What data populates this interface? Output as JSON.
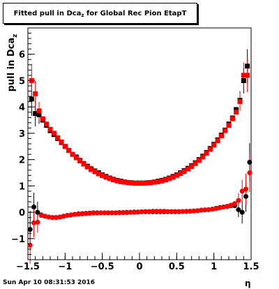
{
  "chart_data": {
    "type": "scatter",
    "title": {
      "text": "Fitted pull in Dca",
      "sub": "z",
      "suffix": " for Global Rec Pion EtapT"
    },
    "xlabel": "η",
    "ylabel": {
      "text": "pull in Dca",
      "sub": "z"
    },
    "xlim": [
      -1.5,
      1.5
    ],
    "ylim": [
      -1.8,
      7.0
    ],
    "grid": false,
    "xticks": [
      {
        "v": -1.5,
        "label": "−1.5"
      },
      {
        "v": -1,
        "label": "−1"
      },
      {
        "v": -0.5,
        "label": "−0.5"
      },
      {
        "v": 0,
        "label": "0"
      },
      {
        "v": 0.5,
        "label": "0.5"
      },
      {
        "v": 1,
        "label": "1"
      },
      {
        "v": 1.5,
        "label": "1.5"
      }
    ],
    "yticks": [
      {
        "v": -1,
        "label": "−1"
      },
      {
        "v": 0,
        "label": "0"
      },
      {
        "v": 1,
        "label": "1"
      },
      {
        "v": 2,
        "label": "2"
      },
      {
        "v": 3,
        "label": "3"
      },
      {
        "v": 4,
        "label": "4"
      },
      {
        "v": 5,
        "label": "5"
      },
      {
        "v": 6,
        "label": "6"
      }
    ],
    "series": [
      {
        "color": "#000000",
        "kind": "sigma",
        "marker": "square",
        "points": [
          [
            -1.45,
            4.3
          ],
          [
            -1.4,
            3.75
          ],
          [
            -1.35,
            3.7
          ],
          [
            -1.3,
            3.5
          ],
          [
            -1.25,
            3.3
          ],
          [
            -1.2,
            3.1
          ],
          [
            -1.15,
            2.95
          ],
          [
            -1.1,
            2.8
          ],
          [
            -1.05,
            2.65
          ],
          [
            -1.0,
            2.5
          ],
          [
            -0.95,
            2.35
          ],
          [
            -0.9,
            2.2
          ],
          [
            -0.85,
            2.1
          ],
          [
            -0.8,
            1.97
          ],
          [
            -0.75,
            1.85
          ],
          [
            -0.7,
            1.75
          ],
          [
            -0.65,
            1.65
          ],
          [
            -0.6,
            1.57
          ],
          [
            -0.55,
            1.5
          ],
          [
            -0.5,
            1.42
          ],
          [
            -0.45,
            1.36
          ],
          [
            -0.4,
            1.3
          ],
          [
            -0.35,
            1.25
          ],
          [
            -0.3,
            1.21
          ],
          [
            -0.25,
            1.18
          ],
          [
            -0.2,
            1.15
          ],
          [
            -0.15,
            1.13
          ],
          [
            -0.1,
            1.12
          ],
          [
            -0.05,
            1.11
          ],
          [
            0.0,
            1.11
          ],
          [
            0.05,
            1.11
          ],
          [
            0.1,
            1.12
          ],
          [
            0.15,
            1.13
          ],
          [
            0.2,
            1.15
          ],
          [
            0.25,
            1.18
          ],
          [
            0.3,
            1.21
          ],
          [
            0.35,
            1.25
          ],
          [
            0.4,
            1.3
          ],
          [
            0.45,
            1.36
          ],
          [
            0.5,
            1.42
          ],
          [
            0.55,
            1.5
          ],
          [
            0.6,
            1.58
          ],
          [
            0.65,
            1.67
          ],
          [
            0.7,
            1.77
          ],
          [
            0.75,
            1.88
          ],
          [
            0.8,
            2.0
          ],
          [
            0.85,
            2.13
          ],
          [
            0.9,
            2.27
          ],
          [
            0.95,
            2.42
          ],
          [
            1.0,
            2.58
          ],
          [
            1.05,
            2.75
          ],
          [
            1.1,
            2.93
          ],
          [
            1.15,
            3.12
          ],
          [
            1.2,
            3.35
          ],
          [
            1.25,
            3.58
          ],
          [
            1.3,
            3.9
          ],
          [
            1.35,
            4.25
          ],
          [
            1.4,
            5.0
          ],
          [
            1.45,
            5.55
          ]
        ]
      },
      {
        "color": "#ff0000",
        "kind": "sigma",
        "marker": "square",
        "points": [
          [
            -1.45,
            5.0
          ],
          [
            -1.4,
            4.5
          ],
          [
            -1.35,
            3.85
          ],
          [
            -1.3,
            3.55
          ],
          [
            -1.25,
            3.35
          ],
          [
            -1.2,
            3.15
          ],
          [
            -1.15,
            3.0
          ],
          [
            -1.1,
            2.83
          ],
          [
            -1.05,
            2.67
          ],
          [
            -1.0,
            2.5
          ],
          [
            -0.95,
            2.35
          ],
          [
            -0.9,
            2.2
          ],
          [
            -0.85,
            2.07
          ],
          [
            -0.8,
            1.95
          ],
          [
            -0.75,
            1.83
          ],
          [
            -0.7,
            1.72
          ],
          [
            -0.65,
            1.62
          ],
          [
            -0.6,
            1.54
          ],
          [
            -0.55,
            1.46
          ],
          [
            -0.5,
            1.39
          ],
          [
            -0.45,
            1.33
          ],
          [
            -0.4,
            1.28
          ],
          [
            -0.35,
            1.23
          ],
          [
            -0.3,
            1.19
          ],
          [
            -0.25,
            1.16
          ],
          [
            -0.2,
            1.14
          ],
          [
            -0.15,
            1.12
          ],
          [
            -0.1,
            1.11
          ],
          [
            -0.05,
            1.1
          ],
          [
            0.0,
            1.1
          ],
          [
            0.05,
            1.1
          ],
          [
            0.1,
            1.11
          ],
          [
            0.15,
            1.12
          ],
          [
            0.2,
            1.14
          ],
          [
            0.25,
            1.16
          ],
          [
            0.3,
            1.19
          ],
          [
            0.35,
            1.23
          ],
          [
            0.4,
            1.28
          ],
          [
            0.45,
            1.33
          ],
          [
            0.5,
            1.4
          ],
          [
            0.55,
            1.47
          ],
          [
            0.6,
            1.55
          ],
          [
            0.65,
            1.64
          ],
          [
            0.7,
            1.74
          ],
          [
            0.75,
            1.85
          ],
          [
            0.8,
            1.97
          ],
          [
            0.85,
            2.1
          ],
          [
            0.9,
            2.24
          ],
          [
            0.95,
            2.39
          ],
          [
            1.0,
            2.55
          ],
          [
            1.05,
            2.72
          ],
          [
            1.1,
            2.9
          ],
          [
            1.15,
            3.1
          ],
          [
            1.2,
            3.3
          ],
          [
            1.25,
            3.55
          ],
          [
            1.3,
            3.8
          ],
          [
            1.35,
            4.2
          ],
          [
            1.4,
            5.2
          ],
          [
            1.45,
            5.2
          ]
        ]
      },
      {
        "color": "#000000",
        "kind": "mean",
        "marker": "circle",
        "points": [
          [
            -1.47,
            -0.65
          ],
          [
            -1.42,
            0.2
          ],
          [
            -1.37,
            0.0
          ],
          [
            -1.32,
            -0.1
          ],
          [
            -1.27,
            -0.15
          ],
          [
            -1.22,
            -0.18
          ],
          [
            -1.17,
            -0.2
          ],
          [
            -1.12,
            -0.2
          ],
          [
            -1.07,
            -0.18
          ],
          [
            -1.02,
            -0.15
          ],
          [
            -0.97,
            -0.12
          ],
          [
            -0.92,
            -0.1
          ],
          [
            -0.87,
            -0.08
          ],
          [
            -0.82,
            -0.06
          ],
          [
            -0.77,
            -0.05
          ],
          [
            -0.72,
            -0.04
          ],
          [
            -0.67,
            -0.03
          ],
          [
            -0.62,
            -0.02
          ],
          [
            -0.57,
            -0.02
          ],
          [
            -0.52,
            -0.02
          ],
          [
            -0.47,
            -0.02
          ],
          [
            -0.42,
            -0.02
          ],
          [
            -0.37,
            -0.02
          ],
          [
            -0.32,
            -0.02
          ],
          [
            -0.27,
            -0.01
          ],
          [
            -0.22,
            -0.01
          ],
          [
            -0.17,
            0.0
          ],
          [
            -0.12,
            0.0
          ],
          [
            -0.07,
            0.01
          ],
          [
            -0.02,
            0.01
          ],
          [
            0.03,
            0.02
          ],
          [
            0.08,
            0.02
          ],
          [
            0.13,
            0.02
          ],
          [
            0.18,
            0.02
          ],
          [
            0.23,
            0.02
          ],
          [
            0.28,
            0.02
          ],
          [
            0.33,
            0.02
          ],
          [
            0.38,
            0.02
          ],
          [
            0.43,
            0.02
          ],
          [
            0.48,
            0.02
          ],
          [
            0.53,
            0.02
          ],
          [
            0.58,
            0.03
          ],
          [
            0.63,
            0.03
          ],
          [
            0.68,
            0.04
          ],
          [
            0.73,
            0.05
          ],
          [
            0.78,
            0.06
          ],
          [
            0.83,
            0.08
          ],
          [
            0.88,
            0.09
          ],
          [
            0.93,
            0.1
          ],
          [
            0.98,
            0.12
          ],
          [
            1.03,
            0.15
          ],
          [
            1.08,
            0.18
          ],
          [
            1.13,
            0.2
          ],
          [
            1.18,
            0.22
          ],
          [
            1.23,
            0.25
          ],
          [
            1.28,
            0.25
          ],
          [
            1.33,
            0.1
          ],
          [
            1.38,
            0.0
          ],
          [
            1.43,
            0.6
          ],
          [
            1.48,
            1.9
          ]
        ]
      },
      {
        "color": "#ff0000",
        "kind": "mean",
        "marker": "circle",
        "points": [
          [
            -1.47,
            -1.25
          ],
          [
            -1.42,
            -0.4
          ],
          [
            -1.37,
            -0.38
          ],
          [
            -1.32,
            -0.12
          ],
          [
            -1.27,
            -0.15
          ],
          [
            -1.22,
            -0.18
          ],
          [
            -1.17,
            -0.2
          ],
          [
            -1.12,
            -0.2
          ],
          [
            -1.07,
            -0.18
          ],
          [
            -1.02,
            -0.15
          ],
          [
            -0.97,
            -0.12
          ],
          [
            -0.92,
            -0.1
          ],
          [
            -0.87,
            -0.08
          ],
          [
            -0.82,
            -0.07
          ],
          [
            -0.77,
            -0.06
          ],
          [
            -0.72,
            -0.05
          ],
          [
            -0.67,
            -0.04
          ],
          [
            -0.62,
            -0.03
          ],
          [
            -0.57,
            -0.03
          ],
          [
            -0.52,
            -0.02
          ],
          [
            -0.47,
            -0.02
          ],
          [
            -0.42,
            -0.02
          ],
          [
            -0.37,
            -0.02
          ],
          [
            -0.32,
            -0.02
          ],
          [
            -0.27,
            -0.02
          ],
          [
            -0.22,
            -0.01
          ],
          [
            -0.17,
            -0.01
          ],
          [
            -0.12,
            0.0
          ],
          [
            -0.07,
            0.0
          ],
          [
            -0.02,
            0.01
          ],
          [
            0.03,
            0.02
          ],
          [
            0.08,
            0.03
          ],
          [
            0.13,
            0.03
          ],
          [
            0.18,
            0.04
          ],
          [
            0.23,
            0.04
          ],
          [
            0.28,
            0.04
          ],
          [
            0.33,
            0.04
          ],
          [
            0.38,
            0.03
          ],
          [
            0.43,
            0.03
          ],
          [
            0.48,
            0.03
          ],
          [
            0.53,
            0.03
          ],
          [
            0.58,
            0.03
          ],
          [
            0.63,
            0.04
          ],
          [
            0.68,
            0.04
          ],
          [
            0.73,
            0.05
          ],
          [
            0.78,
            0.06
          ],
          [
            0.83,
            0.08
          ],
          [
            0.88,
            0.09
          ],
          [
            0.93,
            0.1
          ],
          [
            0.98,
            0.12
          ],
          [
            1.03,
            0.14
          ],
          [
            1.08,
            0.17
          ],
          [
            1.13,
            0.2
          ],
          [
            1.18,
            0.23
          ],
          [
            1.23,
            0.27
          ],
          [
            1.28,
            0.33
          ],
          [
            1.33,
            0.45
          ],
          [
            1.38,
            0.8
          ],
          [
            1.43,
            0.88
          ],
          [
            1.48,
            1.5
          ]
        ]
      }
    ]
  },
  "footer": {
    "timestamp": "Sun Apr 10 08:31:53 2016"
  }
}
